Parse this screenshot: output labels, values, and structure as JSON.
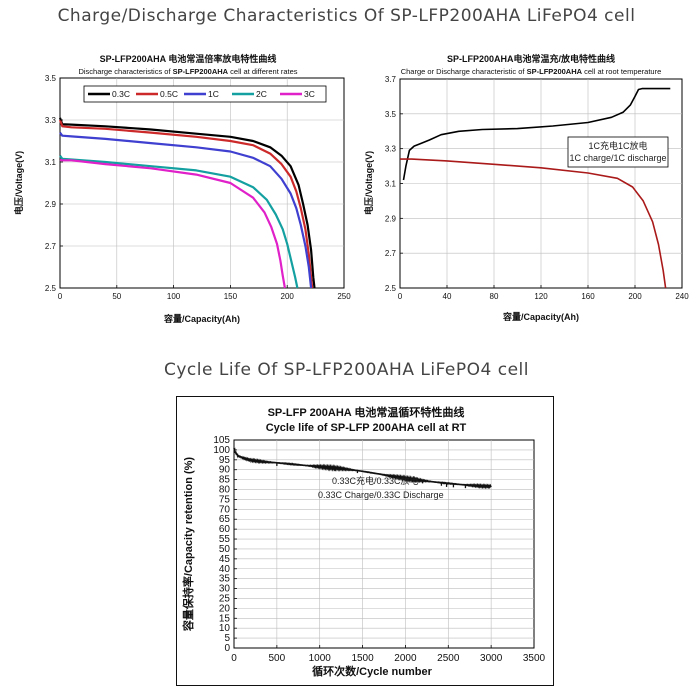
{
  "page": {
    "title_charge_discharge": "Charge/Discharge Characteristics Of SP-LFP200AHA LiFePO4 cell",
    "title_cycle_life": "Cycle Life Of SP-LFP200AHA LiFePO4 cell"
  },
  "chart_data": [
    {
      "type": "line",
      "title": "SP-LFP200AHA 电池常温倍率放电特性曲线",
      "subtitle_prefix": "Discharge characteristics of ",
      "subtitle_bold": "SP-LFP200AHA",
      "subtitle_suffix": " cell at different rates",
      "xlabel": "容量/Capacity(Ah)",
      "ylabel": "电压/Voltage(V)",
      "xlim": [
        0,
        250
      ],
      "ylim": [
        2.5,
        3.5
      ],
      "xticks": [
        "0",
        "50",
        "100",
        "150",
        "200",
        "250"
      ],
      "yticks": [
        "2.5",
        "2.7",
        "2.9",
        "3.1",
        "3.3",
        "3.5"
      ],
      "series": [
        {
          "name": "0.3C",
          "color": "#000000",
          "x": [
            0,
            2,
            10,
            40,
            80,
            120,
            150,
            170,
            185,
            195,
            203,
            210,
            214,
            218,
            221,
            223,
            224
          ],
          "y": [
            3.31,
            3.28,
            3.278,
            3.27,
            3.255,
            3.235,
            3.22,
            3.2,
            3.17,
            3.13,
            3.08,
            2.99,
            2.9,
            2.8,
            2.68,
            2.55,
            2.5
          ]
        },
        {
          "name": "0.5C",
          "color": "#cc2a2a",
          "x": [
            0,
            2,
            10,
            40,
            80,
            120,
            150,
            170,
            185,
            195,
            203,
            208,
            212,
            216,
            219,
            221,
            222
          ],
          "y": [
            3.3,
            3.27,
            3.265,
            3.258,
            3.24,
            3.22,
            3.2,
            3.18,
            3.14,
            3.09,
            3.03,
            2.96,
            2.88,
            2.78,
            2.66,
            2.55,
            2.5
          ]
        },
        {
          "name": "1C",
          "color": "#3f3fd0",
          "x": [
            0,
            2,
            10,
            40,
            80,
            120,
            150,
            170,
            185,
            195,
            203,
            208,
            212,
            216,
            219,
            221
          ],
          "y": [
            3.24,
            3.225,
            3.222,
            3.21,
            3.19,
            3.17,
            3.15,
            3.12,
            3.08,
            3.02,
            2.95,
            2.88,
            2.8,
            2.7,
            2.6,
            2.5
          ]
        },
        {
          "name": "2C",
          "color": "#14a0a0",
          "x": [
            0,
            2,
            10,
            40,
            80,
            120,
            150,
            170,
            182,
            190,
            196,
            200,
            204,
            207,
            209
          ],
          "y": [
            3.13,
            3.115,
            3.112,
            3.1,
            3.08,
            3.06,
            3.03,
            2.98,
            2.92,
            2.85,
            2.78,
            2.71,
            2.62,
            2.55,
            2.5
          ]
        },
        {
          "name": "3C",
          "color": "#e020c8",
          "x": [
            0,
            2,
            10,
            40,
            80,
            120,
            150,
            170,
            180,
            186,
            191,
            194,
            196,
            198
          ],
          "y": [
            3.11,
            3.108,
            3.108,
            3.09,
            3.07,
            3.04,
            3.0,
            2.93,
            2.86,
            2.79,
            2.71,
            2.63,
            2.56,
            2.5
          ]
        }
      ],
      "legend": "top"
    },
    {
      "type": "line",
      "title": "SP-LFP200AHA电池常温充/放电特性曲线",
      "subtitle_prefix": "Charge or Discharge characteristic of ",
      "subtitle_bold": "SP-LFP200AHA",
      "subtitle_suffix": " cell at root temperature",
      "xlabel": "容量/Capacity(Ah)",
      "ylabel": "电压/Voltage(V)",
      "xlim": [
        0,
        240
      ],
      "ylim": [
        2.5,
        3.7
      ],
      "xticks": [
        "0",
        "40",
        "80",
        "120",
        "160",
        "200",
        "240"
      ],
      "yticks": [
        "2.5",
        "2.7",
        "2.9",
        "3.1",
        "3.3",
        "3.5",
        "3.7"
      ],
      "annotation_cn": "1C充电1C放电",
      "annotation_en": "1C charge/1C discharge",
      "series": [
        {
          "name": "charge",
          "color": "#000000",
          "x": [
            3,
            5,
            8,
            12,
            18,
            25,
            35,
            50,
            70,
            100,
            130,
            160,
            180,
            190,
            196,
            200,
            203,
            206,
            210,
            230
          ],
          "y": [
            3.12,
            3.2,
            3.29,
            3.315,
            3.33,
            3.35,
            3.38,
            3.4,
            3.41,
            3.415,
            3.43,
            3.45,
            3.48,
            3.51,
            3.55,
            3.6,
            3.64,
            3.645,
            3.645,
            3.645
          ]
        },
        {
          "name": "discharge",
          "color": "#aa1a1a",
          "x": [
            0,
            10,
            40,
            80,
            120,
            160,
            185,
            198,
            207,
            215,
            220,
            224,
            226
          ],
          "y": [
            3.24,
            3.24,
            3.23,
            3.21,
            3.19,
            3.16,
            3.13,
            3.08,
            3.0,
            2.88,
            2.75,
            2.6,
            2.5
          ]
        }
      ]
    },
    {
      "type": "line",
      "title": "SP-LFP 200AHA  电池常温循环特性曲线",
      "subtitle": "Cycle life of SP-LFP 200AHA cell at RT",
      "xlabel": "循环次数/Cycle number",
      "ylabel": "容量保持率/Capacity retention  (%)",
      "xlim": [
        0,
        3500
      ],
      "ylim": [
        0,
        105
      ],
      "xticks": [
        "0",
        "500",
        "1000",
        "1500",
        "2000",
        "2500",
        "3000",
        "3500"
      ],
      "yticks": [
        "0",
        "5",
        "10",
        "15",
        "20",
        "25",
        "30",
        "35",
        "40",
        "45",
        "50",
        "55",
        "60",
        "65",
        "70",
        "75",
        "80",
        "85",
        "90",
        "95",
        "100",
        "105"
      ],
      "annotation_cn": "0.33C充电/0.33C放电",
      "annotation_en": "0.33C Charge/0.33C Discharge",
      "series": [
        {
          "name": "retention",
          "color": "#000000",
          "x": [
            0,
            20,
            50,
            100,
            150,
            200,
            300,
            400,
            500,
            600,
            700,
            800,
            900,
            1000,
            1100,
            1200,
            1300,
            1400,
            1500,
            1600,
            1700,
            1800,
            1900,
            2000,
            2100,
            2200,
            2300,
            2400,
            2500,
            2600,
            2700,
            2800,
            2900,
            3000
          ],
          "y": [
            100.5,
            98.5,
            97,
            96,
            95.3,
            94.8,
            94.2,
            93.8,
            93.5,
            93.1,
            92.7,
            92.3,
            91.9,
            91.5,
            91.1,
            90.8,
            90.3,
            89.8,
            89.2,
            88.5,
            87.8,
            87,
            86.3,
            85.6,
            85,
            84.5,
            84,
            83.5,
            83.1,
            82.7,
            82.3,
            82,
            81.7,
            81.6
          ]
        }
      ]
    }
  ]
}
